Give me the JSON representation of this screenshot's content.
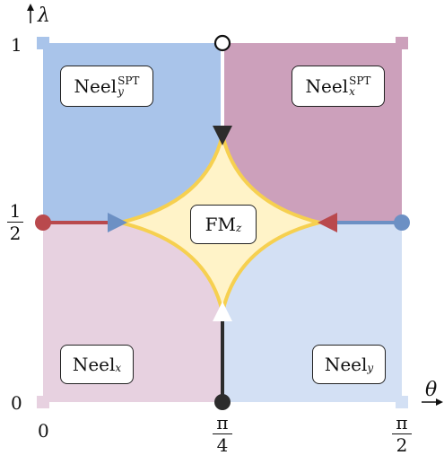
{
  "axes": {
    "y_label": "λ",
    "x_label": "θ",
    "y_ticks": {
      "top": "1",
      "middle_num": "1",
      "middle_den": "2",
      "bottom": "0"
    },
    "x_ticks": {
      "left": "0",
      "middle_num": "π",
      "middle_den": "4",
      "right_num": "π",
      "right_den": "2"
    }
  },
  "phases": {
    "top_left": {
      "base": "Neel",
      "sub": "y",
      "sup": "SPT"
    },
    "top_right": {
      "base": "Neel",
      "sub": "x",
      "sup": "SPT"
    },
    "bottom_left": {
      "base": "Neel",
      "sub": "x"
    },
    "bottom_right": {
      "base": "Neel",
      "sub": "y"
    },
    "center": {
      "base": "FM",
      "sub": "z"
    }
  },
  "colors": {
    "top_left": "#a9c4ea",
    "top_right": "#cca0bb",
    "bottom_left": "#e7d1e0",
    "bottom_right": "#d3e0f4",
    "center_fill": "#fff3c8",
    "center_stroke": "#f6d050",
    "red_line": "#b9494d",
    "blue_line": "#6c90c4",
    "black_line": "#2c2c2c"
  }
}
